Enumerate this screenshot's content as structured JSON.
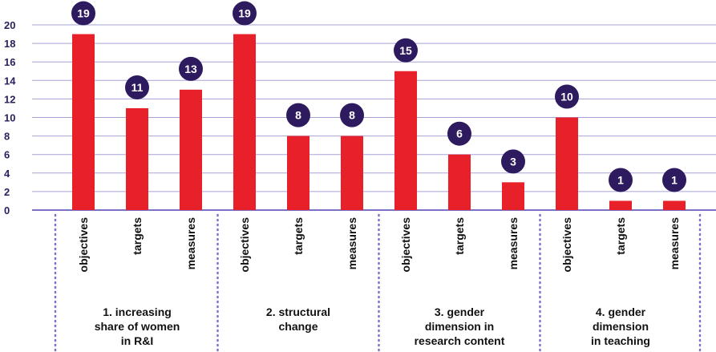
{
  "chart_data": {
    "type": "bar",
    "ylim": [
      0,
      20
    ],
    "yticks": [
      0,
      2,
      4,
      6,
      8,
      10,
      12,
      14,
      16,
      18,
      20
    ],
    "grid": true,
    "categories": [
      "objectives",
      "targets",
      "measures",
      "objectives",
      "targets",
      "measures",
      "objectives",
      "targets",
      "measures",
      "objectives",
      "targets",
      "measures"
    ],
    "values": [
      19,
      11,
      13,
      19,
      8,
      8,
      15,
      6,
      3,
      10,
      1,
      1
    ],
    "groups": [
      {
        "lines": [
          "1. increasing",
          "share of women",
          "in R&I"
        ]
      },
      {
        "lines": [
          "2. structural",
          "change"
        ]
      },
      {
        "lines": [
          "3. gender",
          "dimension in",
          "research content"
        ]
      },
      {
        "lines": [
          "4. gender",
          "dimension",
          "in teaching"
        ]
      }
    ],
    "colors": {
      "bar": "#e8202a",
      "badge": "#2e1a5e",
      "grid": "#a7a2d6",
      "separator": "#7b72c8"
    }
  }
}
